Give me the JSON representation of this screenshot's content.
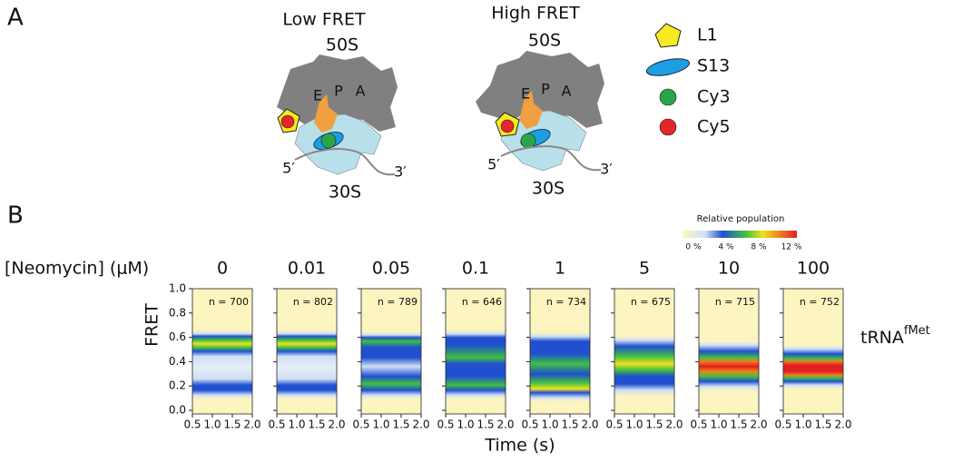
{
  "panel_a": {
    "label": "A",
    "diagrams": [
      {
        "title": "Low FRET",
        "large_subunit": "50S",
        "small_subunit": "30S",
        "sites": [
          "E",
          "P",
          "A"
        ],
        "end_5": "5′",
        "end_3": "3′"
      },
      {
        "title": "High FRET",
        "large_subunit": "50S",
        "small_subunit": "30S",
        "sites": [
          "E",
          "P",
          "A"
        ],
        "end_5": "5′",
        "end_3": "3′"
      }
    ],
    "legend": [
      "L1",
      "S13",
      "Cy3",
      "Cy5"
    ]
  },
  "panel_b": {
    "label": "B",
    "colorbar": {
      "title": "Relative population",
      "ticks": [
        "0 %",
        "4 %",
        "8 %",
        "12 %"
      ]
    },
    "condition_label": "[Neomycin] (μM)",
    "concentrations": [
      "0",
      "0.01",
      "0.05",
      "0.1",
      "1",
      "5",
      "10",
      "100"
    ],
    "counts": [
      "n = 700",
      "n = 802",
      "n = 789",
      "n = 646",
      "n = 734",
      "n = 675",
      "n = 715",
      "n = 752"
    ],
    "ylabel": "FRET",
    "xlabel": "Time (s)",
    "ylim": [
      0,
      1
    ],
    "yticks": [
      {
        "value": 0,
        "label": "0.0"
      },
      {
        "value": 0.2,
        "label": "0.2"
      },
      {
        "value": 0.4,
        "label": "0.4"
      },
      {
        "value": 0.6,
        "label": "0.6"
      },
      {
        "value": 0.8,
        "label": "0.8"
      },
      {
        "value": 1,
        "label": "1.0"
      }
    ],
    "xlim": [
      0.5,
      2
    ],
    "xticks": [
      0.5,
      {
        "value": 1,
        "label": "1.0"
      },
      1.5,
      {
        "value": 2,
        "label": "2.0"
      }
    ],
    "row_label": {
      "base": "tRNA",
      "superscript": "fMet"
    }
  }
}
